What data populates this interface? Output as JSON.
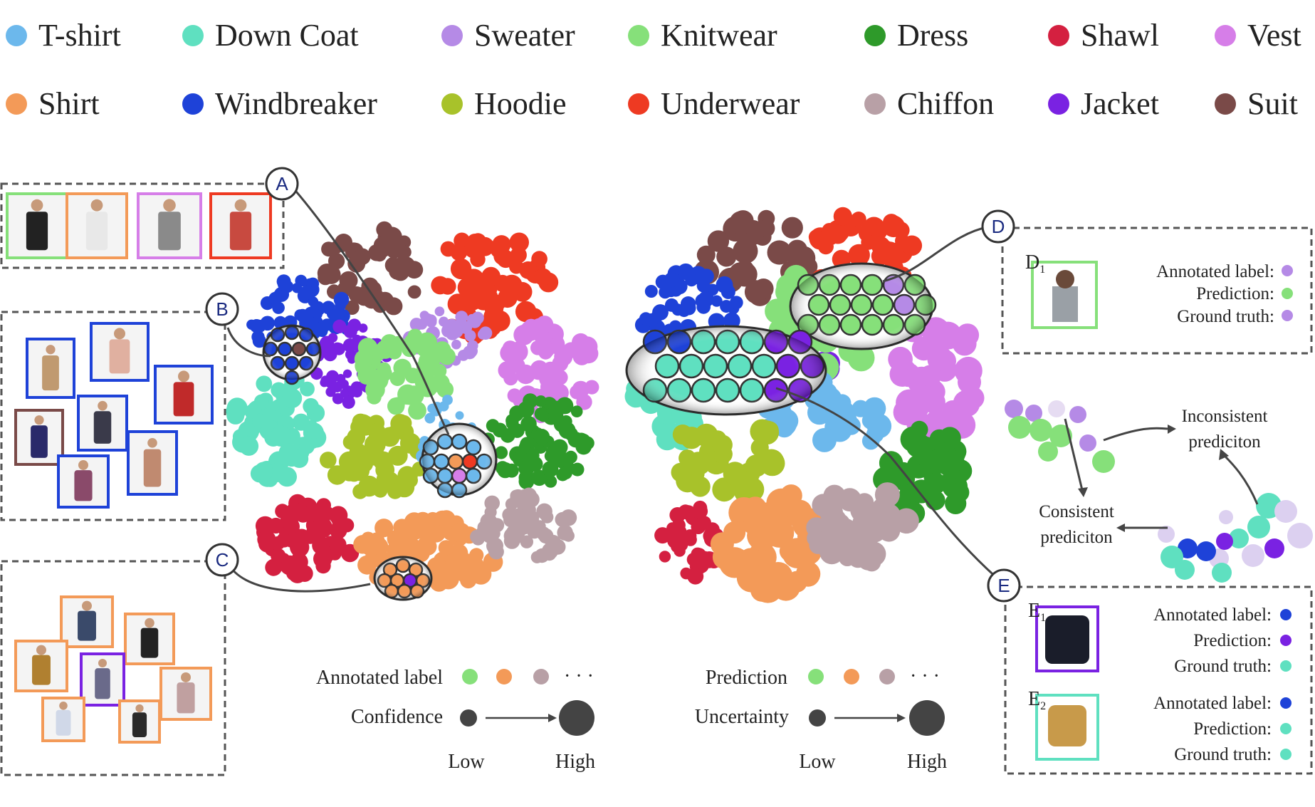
{
  "categories": [
    {
      "name": "T-shirt",
      "color": "#6cb8ec"
    },
    {
      "name": "Down Coat",
      "color": "#5fe0c0"
    },
    {
      "name": "Sweater",
      "color": "#b58ae6"
    },
    {
      "name": "Knitwear",
      "color": "#86e07a"
    },
    {
      "name": "Dress",
      "color": "#2e9a2a"
    },
    {
      "name": "Shawl",
      "color": "#d42040"
    },
    {
      "name": "Vest",
      "color": "#d67ee8"
    },
    {
      "name": "Shirt",
      "color": "#f39a58"
    },
    {
      "name": "Windbreaker",
      "color": "#1e42d8"
    },
    {
      "name": "Hoodie",
      "color": "#a8c22a"
    },
    {
      "name": "Underwear",
      "color": "#ee3a22"
    },
    {
      "name": "Chiffon",
      "color": "#b8a0a6"
    },
    {
      "name": "Jacket",
      "color": "#7a22e2"
    },
    {
      "name": "Suit",
      "color": "#7a4a48"
    }
  ],
  "callouts": {
    "A": "A",
    "B": "B",
    "C": "C",
    "D": "D",
    "E": "E"
  },
  "panel_d": {
    "tag": "D1",
    "tag_base": "D",
    "tag_sub": "1",
    "rows": [
      "Annotated label:",
      "Prediction:",
      "Ground truth:"
    ],
    "dot_colors": [
      "#b58ae6",
      "#86e07a",
      "#b58ae6"
    ]
  },
  "panel_e": {
    "e1": {
      "tag_base": "E",
      "tag_sub": "1",
      "rows": [
        "Annotated label:",
        "Prediction:",
        "Ground truth:"
      ],
      "dot_colors": [
        "#1e42d8",
        "#7a22e2",
        "#5fe0c0"
      ]
    },
    "e2": {
      "tag_base": "E",
      "tag_sub": "2",
      "rows": [
        "Annotated label:",
        "Prediction:",
        "Ground truth:"
      ],
      "dot_colors": [
        "#1e42d8",
        "#5fe0c0",
        "#5fe0c0"
      ]
    }
  },
  "consistency": {
    "inconsistent": [
      "Inconsistent",
      "prediciton"
    ],
    "consistent": [
      "Consistent",
      "prediciton"
    ]
  },
  "left_legend": {
    "row1": "Annotated label",
    "row2": "Confidence",
    "low": "Low",
    "high": "High",
    "ellipsis": "· · ·",
    "dot_colors": [
      "#86e07a",
      "#f39a58",
      "#b8a0a6"
    ]
  },
  "right_legend": {
    "row1": "Prediction",
    "row2": "Uncertainty",
    "low": "Low",
    "high": "High",
    "ellipsis": "· · ·",
    "dot_colors": [
      "#86e07a",
      "#f39a58",
      "#b8a0a6"
    ]
  },
  "image_frames": {
    "a": [
      "#86e07a",
      "#f39a58",
      "#d67ee8",
      "#ee3a22"
    ],
    "b": [
      "#1e42d8",
      "#1e42d8",
      "#1e42d8",
      "#7a4a48",
      "#1e42d8",
      "#1e42d8",
      "#1e42d8",
      "#1e42d8"
    ],
    "c": [
      "#f39a58",
      "#f39a58",
      "#f39a58",
      "#7a22e2",
      "#f39a58",
      "#f39a58",
      "#f39a58",
      "#f39a58"
    ]
  }
}
